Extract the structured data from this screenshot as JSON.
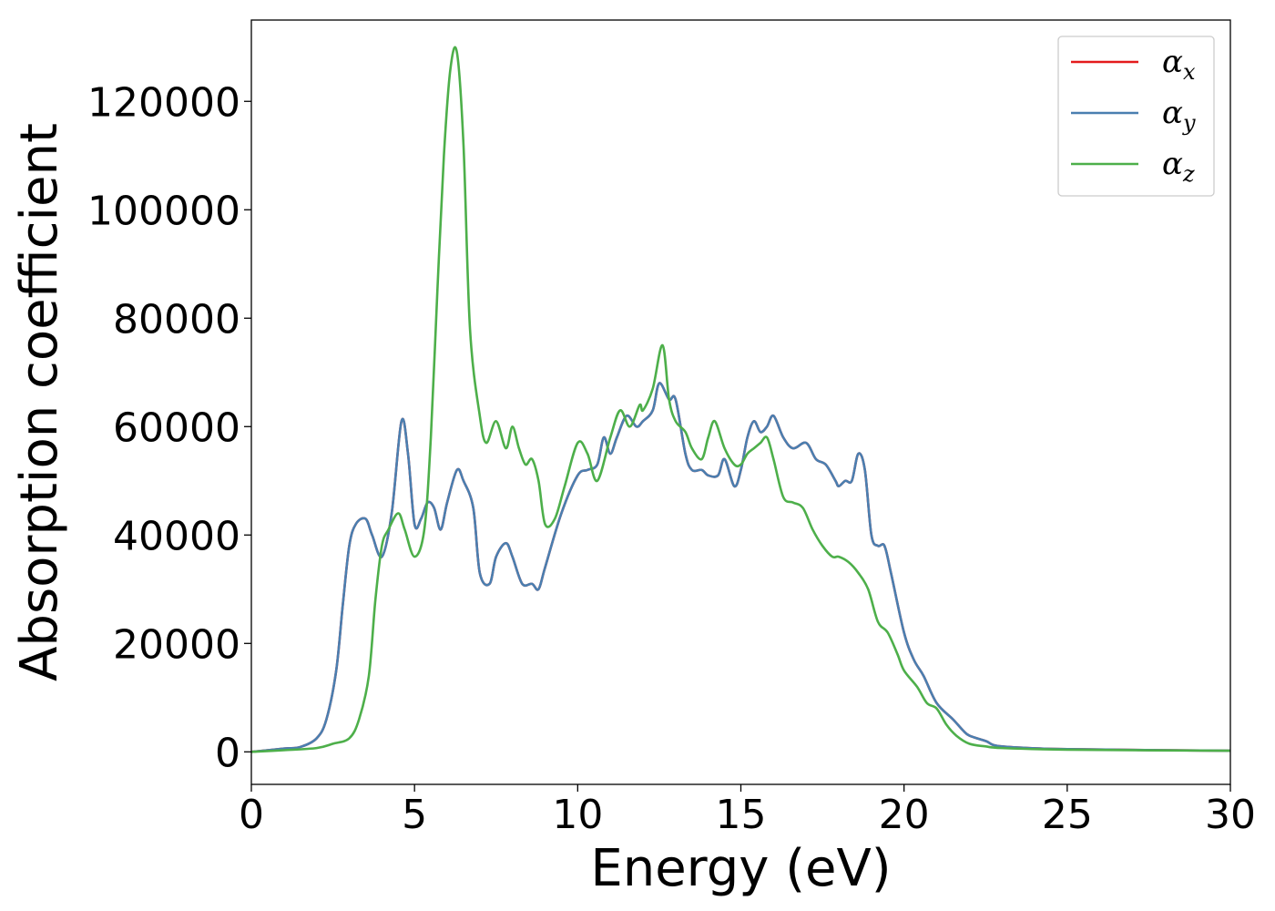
{
  "chart_data": {
    "type": "line",
    "xlabel": "Energy (eV)",
    "ylabel": "Absorption coefficient",
    "xlim": [
      0,
      30
    ],
    "ylim": [
      -6000,
      135000
    ],
    "xticks": [
      0,
      5,
      10,
      15,
      20,
      25,
      30
    ],
    "xtick_labels": [
      "0",
      "5",
      "10",
      "15",
      "20",
      "25",
      "30"
    ],
    "yticks": [
      0,
      20000,
      40000,
      60000,
      80000,
      100000,
      120000
    ],
    "ytick_labels": [
      "0",
      "20000",
      "40000",
      "60000",
      "80000",
      "100000",
      "120000"
    ],
    "grid": false,
    "legend_position": "top-right",
    "series": [
      {
        "name": "α",
        "subscript": "x",
        "color": "#e41a1c",
        "x": [
          0,
          1,
          1.5,
          2,
          2.3,
          2.6,
          2.8,
          3.0,
          3.2,
          3.5,
          3.7,
          4.0,
          4.3,
          4.6,
          4.8,
          5.0,
          5.2,
          5.4,
          5.6,
          5.8,
          6.0,
          6.3,
          6.5,
          6.8,
          7.0,
          7.3,
          7.5,
          7.8,
          8.0,
          8.3,
          8.6,
          8.8,
          9.0,
          9.5,
          10.0,
          10.3,
          10.6,
          10.8,
          11.0,
          11.2,
          11.5,
          11.8,
          12.0,
          12.3,
          12.5,
          12.8,
          13.0,
          13.3,
          13.5,
          13.8,
          14.0,
          14.3,
          14.5,
          14.8,
          15.0,
          15.2,
          15.4,
          15.6,
          15.8,
          16.0,
          16.3,
          16.6,
          17.0,
          17.3,
          17.6,
          17.9,
          18.0,
          18.2,
          18.4,
          18.6,
          18.8,
          19.0,
          19.2,
          19.4,
          19.6,
          20.0,
          20.3,
          20.6,
          21.0,
          21.5,
          21.8,
          22.0,
          22.5,
          23.0,
          25.0,
          30.0
        ],
        "y": [
          0,
          600,
          900,
          2500,
          6000,
          15000,
          27000,
          38000,
          42000,
          43000,
          40000,
          36000,
          44000,
          61000,
          55000,
          42000,
          43000,
          46000,
          45000,
          41000,
          46000,
          52000,
          50000,
          45000,
          33000,
          31000,
          36000,
          38500,
          36000,
          31000,
          31000,
          30000,
          34000,
          44000,
          51000,
          52000,
          53000,
          58000,
          55000,
          58000,
          62000,
          60000,
          61000,
          63000,
          68000,
          65000,
          65000,
          55000,
          52000,
          52000,
          51000,
          51000,
          54000,
          49000,
          52000,
          58000,
          61000,
          59000,
          60000,
          62000,
          58000,
          56000,
          57000,
          54000,
          53000,
          50000,
          49000,
          50000,
          50000,
          55000,
          52000,
          40000,
          38000,
          38000,
          33000,
          22000,
          17000,
          14000,
          9000,
          6000,
          4000,
          3000,
          2000,
          1000,
          500,
          200
        ]
      },
      {
        "name": "α",
        "subscript": "y",
        "color": "#4a7fb0",
        "x": [
          0,
          1,
          1.5,
          2,
          2.3,
          2.6,
          2.8,
          3.0,
          3.2,
          3.5,
          3.7,
          4.0,
          4.3,
          4.6,
          4.8,
          5.0,
          5.2,
          5.4,
          5.6,
          5.8,
          6.0,
          6.3,
          6.5,
          6.8,
          7.0,
          7.3,
          7.5,
          7.8,
          8.0,
          8.3,
          8.6,
          8.8,
          9.0,
          9.5,
          10.0,
          10.3,
          10.6,
          10.8,
          11.0,
          11.2,
          11.5,
          11.8,
          12.0,
          12.3,
          12.5,
          12.8,
          13.0,
          13.3,
          13.5,
          13.8,
          14.0,
          14.3,
          14.5,
          14.8,
          15.0,
          15.2,
          15.4,
          15.6,
          15.8,
          16.0,
          16.3,
          16.6,
          17.0,
          17.3,
          17.6,
          17.9,
          18.0,
          18.2,
          18.4,
          18.6,
          18.8,
          19.0,
          19.2,
          19.4,
          19.6,
          20.0,
          20.3,
          20.6,
          21.0,
          21.5,
          21.8,
          22.0,
          22.5,
          23.0,
          25.0,
          30.0
        ],
        "y": [
          0,
          600,
          900,
          2500,
          6000,
          15000,
          27000,
          38000,
          42000,
          43000,
          40000,
          36000,
          44000,
          61000,
          55000,
          42000,
          43000,
          46000,
          45000,
          41000,
          46000,
          52000,
          50000,
          45000,
          33000,
          31000,
          36000,
          38500,
          36000,
          31000,
          31000,
          30000,
          34000,
          44000,
          51000,
          52000,
          53000,
          58000,
          55000,
          58000,
          62000,
          60000,
          61000,
          63000,
          68000,
          65000,
          65000,
          55000,
          52000,
          52000,
          51000,
          51000,
          54000,
          49000,
          52000,
          58000,
          61000,
          59000,
          60000,
          62000,
          58000,
          56000,
          57000,
          54000,
          53000,
          50000,
          49000,
          50000,
          50000,
          55000,
          52000,
          40000,
          38000,
          38000,
          33000,
          22000,
          17000,
          14000,
          9000,
          6000,
          4000,
          3000,
          2000,
          1000,
          500,
          200
        ]
      },
      {
        "name": "α",
        "subscript": "z",
        "color": "#4daf4a",
        "x": [
          0,
          1,
          2,
          2.5,
          3.0,
          3.3,
          3.6,
          3.8,
          4.0,
          4.2,
          4.5,
          4.7,
          5.0,
          5.3,
          5.5,
          5.7,
          5.9,
          6.1,
          6.3,
          6.5,
          6.7,
          7.0,
          7.2,
          7.5,
          7.8,
          8.0,
          8.2,
          8.4,
          8.6,
          8.8,
          9.0,
          9.3,
          9.6,
          10.0,
          10.3,
          10.6,
          11.0,
          11.3,
          11.6,
          11.9,
          12.0,
          12.3,
          12.6,
          12.8,
          13.0,
          13.3,
          13.5,
          13.8,
          14.0,
          14.2,
          14.5,
          14.8,
          15.0,
          15.2,
          15.4,
          15.6,
          15.8,
          16.0,
          16.3,
          16.6,
          16.9,
          17.2,
          17.5,
          17.8,
          18.0,
          18.3,
          18.6,
          18.9,
          19.2,
          19.5,
          19.8,
          20.0,
          20.4,
          20.7,
          21.0,
          21.3,
          21.6,
          22.0,
          22.5,
          23.0,
          25.0,
          30.0
        ],
        "y": [
          0,
          300,
          700,
          1500,
          2500,
          6000,
          14000,
          28000,
          38000,
          41000,
          44000,
          41000,
          36000,
          41000,
          58000,
          85000,
          110000,
          126000,
          129000,
          112000,
          78000,
          62000,
          57000,
          61000,
          56000,
          60000,
          56000,
          53000,
          54000,
          50000,
          42000,
          43000,
          49000,
          57000,
          55000,
          50000,
          58000,
          63000,
          60000,
          64000,
          63000,
          67000,
          75000,
          65000,
          61000,
          59000,
          56000,
          54000,
          58000,
          61000,
          56000,
          53000,
          53000,
          55000,
          56000,
          57000,
          58000,
          54000,
          47000,
          46000,
          45000,
          41000,
          38000,
          36000,
          36000,
          35000,
          33000,
          30000,
          24000,
          22000,
          18000,
          15000,
          12000,
          9000,
          8000,
          5000,
          3000,
          1500,
          1000,
          700,
          400,
          200
        ]
      }
    ]
  }
}
